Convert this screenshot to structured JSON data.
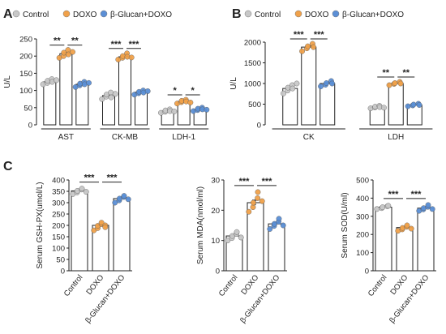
{
  "colors": {
    "control": "#c8c8c8",
    "doxo": "#f0a14a",
    "glucan": "#5b8fd6",
    "axis": "#222222"
  },
  "groups": [
    "Control",
    "DOXO",
    "β-Glucan+DOXO"
  ],
  "chart_data": [
    {
      "type": "bar",
      "panel_label": "A",
      "legend": [
        "Control",
        "DOXO",
        "β-Glucan+DOXO"
      ],
      "ylabel": "U/L",
      "ylim": [
        0,
        250
      ],
      "yticks": [
        0,
        50,
        100,
        150,
        200,
        250
      ],
      "categories": [
        "AST",
        "CK-MB",
        "LDH-1"
      ],
      "series": [
        {
          "name": "Control",
          "values": [
            125,
            85,
            40
          ],
          "points": [
            [
              118,
              122,
              128,
              133,
              125,
              130
            ],
            [
              75,
              82,
              88,
              94,
              80,
              90
            ],
            [
              35,
              38,
              42,
              45,
              40,
              39
            ]
          ]
        },
        {
          "name": "DOXO",
          "values": [
            207,
            198,
            68
          ],
          "points": [
            [
              195,
              200,
              210,
              218,
              205,
              212
            ],
            [
              190,
              195,
              200,
              208,
              198,
              196
            ],
            [
              62,
              66,
              70,
              73,
              68,
              65
            ]
          ]
        },
        {
          "name": "β-Glucan+DOXO",
          "values": [
            118,
            95,
            45
          ],
          "points": [
            [
              110,
              115,
              120,
              125,
              118,
              122
            ],
            [
              88,
              92,
              96,
              100,
              94,
              98
            ],
            [
              40,
              43,
              47,
              50,
              45,
              44
            ]
          ]
        }
      ],
      "significance": [
        [
          "**",
          "**"
        ],
        [
          "***",
          "***"
        ],
        [
          "*",
          "*"
        ]
      ]
    },
    {
      "type": "bar",
      "panel_label": "B",
      "legend": [
        "Control",
        "DOXO",
        "β-Glucan+DOXO"
      ],
      "ylabel": "U/L",
      "ylim": [
        0,
        2000
      ],
      "yticks": [
        0,
        500,
        1000,
        1500,
        2000
      ],
      "categories": [
        "CK",
        "LDH"
      ],
      "series": [
        {
          "name": "Control",
          "values": [
            880,
            430
          ],
          "points": [
            [
              760,
              830,
              900,
              960,
              880,
              1000
            ],
            [
              400,
              420,
              440,
              460,
              430,
              415
            ]
          ]
        },
        {
          "name": "DOXO",
          "values": [
            1880,
            1000
          ],
          "points": [
            [
              1780,
              1850,
              1900,
              1960,
              1880
            ],
            [
              960,
              990,
              1010,
              1040,
              1000
            ]
          ]
        },
        {
          "name": "β-Glucan+DOXO",
          "values": [
            1000,
            480
          ],
          "points": [
            [
              930,
              970,
              1010,
              1060,
              1000
            ],
            [
              450,
              470,
              490,
              510,
              480
            ]
          ]
        }
      ],
      "significance": [
        [
          "***",
          "***"
        ],
        [
          "**",
          "**"
        ]
      ]
    },
    {
      "type": "bar",
      "panel_label": "C",
      "ylabel": "Serum GSH-PX(umol/L)",
      "ylim": [
        0,
        400
      ],
      "yticks": [
        0,
        50,
        100,
        150,
        200,
        250,
        300,
        350,
        400
      ],
      "categories": [
        "Control",
        "DOXO",
        "β-Glucan+DOXO"
      ],
      "values": [
        352,
        200,
        318
      ],
      "points": [
        [
          338,
          345,
          352,
          358,
          362,
          348
        ],
        [
          178,
          188,
          198,
          205,
          212,
          200,
          192
        ],
        [
          300,
          310,
          318,
          325,
          330,
          315
        ]
      ],
      "significance": [
        "***",
        "***"
      ]
    },
    {
      "type": "bar",
      "ylabel": "Serum MDA(nmol/ml)",
      "ylim": [
        0,
        30
      ],
      "yticks": [
        0,
        10,
        20,
        30
      ],
      "categories": [
        "Control",
        "DOXO",
        "β-Glucan+DOXO"
      ],
      "values": [
        11.5,
        22.5,
        15.5
      ],
      "points": [
        [
          10,
          10.8,
          11.5,
          12.2,
          12.8,
          11
        ],
        [
          19.5,
          21,
          22.5,
          24,
          26,
          23
        ],
        [
          13.8,
          14.8,
          15.5,
          16.2,
          17.2,
          15
        ]
      ],
      "significance": [
        "***",
        "***"
      ]
    },
    {
      "type": "bar",
      "ylabel": "Serum SOD(U/ml)",
      "ylim": [
        0,
        500
      ],
      "yticks": [
        0,
        100,
        200,
        300,
        400,
        500
      ],
      "categories": [
        "Control",
        "DOXO",
        "β-Glucan+DOXO"
      ],
      "values": [
        350,
        238,
        345
      ],
      "points": [
        [
          340,
          345,
          350,
          355,
          358
        ],
        [
          220,
          228,
          236,
          242,
          250,
          232
        ],
        [
          330,
          338,
          345,
          352,
          362,
          340
        ]
      ],
      "significance": [
        "***",
        "***"
      ]
    }
  ]
}
